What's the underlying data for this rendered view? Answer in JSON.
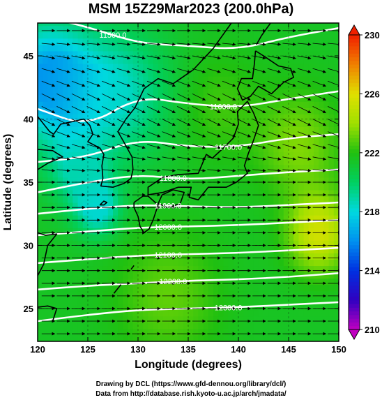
{
  "title": "MSM 15Z29Mar2023 (200.0hPa)",
  "credit_line1": "Drawing by DCL (https://www.gfd-dennou.org/library/dcl/)",
  "credit_line2": "Data from http://database.rish.kyoto-u.ac.jp/arch/jmadata/",
  "colors": {
    "contour": "#ffffff",
    "coast": "#000000",
    "vector": "#000000",
    "frame": "#000000"
  },
  "chart_data": {
    "type": "heatmap",
    "title": "MSM 15Z29Mar2023 (200.0hPa)",
    "xlabel": "Longitude (degrees)",
    "ylabel": "Latitude  (degrees)",
    "xlim": [
      120,
      150
    ],
    "ylim": [
      22.4,
      47.6
    ],
    "xticks": [
      120,
      125,
      130,
      135,
      140,
      145,
      150
    ],
    "yticks": [
      25,
      30,
      35,
      40,
      45
    ],
    "colorbar": {
      "min": 210,
      "max": 230,
      "ticks": [
        210,
        214,
        218,
        222,
        226,
        230
      ],
      "stops": [
        {
          "value": 210,
          "color": "#c000c0"
        },
        {
          "value": 212,
          "color": "#3000c0"
        },
        {
          "value": 214,
          "color": "#0030e0"
        },
        {
          "value": 216,
          "color": "#0090f0"
        },
        {
          "value": 218,
          "color": "#00d8e0"
        },
        {
          "value": 220,
          "color": "#00d060"
        },
        {
          "value": 222,
          "color": "#20c010"
        },
        {
          "value": 224,
          "color": "#a0e000"
        },
        {
          "value": 226,
          "color": "#e0e000"
        },
        {
          "value": 228,
          "color": "#f08000"
        },
        {
          "value": 230,
          "color": "#f02000"
        }
      ]
    },
    "temperature_field": {
      "base": 221.5,
      "features": [
        {
          "lon": 121,
          "lat": 43,
          "value": 216.0,
          "radius": 4.5
        },
        {
          "lon": 128,
          "lat": 42,
          "value": 218.5,
          "radius": 5
        },
        {
          "lon": 124,
          "lat": 36,
          "value": 219.0,
          "radius": 3
        },
        {
          "lon": 126,
          "lat": 33,
          "value": 218.0,
          "radius": 2.2
        },
        {
          "lon": 148,
          "lat": 31,
          "value": 225.5,
          "radius": 3
        },
        {
          "lon": 146,
          "lat": 38,
          "value": 223.5,
          "radius": 4
        },
        {
          "lon": 138,
          "lat": 41,
          "value": 222.5,
          "radius": 4
        },
        {
          "lon": 133,
          "lat": 26,
          "value": 223.0,
          "radius": 5
        }
      ]
    },
    "contours": [
      {
        "label": "11500.0",
        "label_lon": 127.5,
        "points": [
          [
            120,
            48.2
          ],
          [
            125,
            47.3
          ],
          [
            130,
            46.0
          ],
          [
            135,
            45.8
          ],
          [
            140,
            45.5
          ],
          [
            145,
            46.5
          ],
          [
            150,
            47.2
          ]
        ]
      },
      {
        "label": "11600.0",
        "label_lon": 138.5,
        "points": [
          [
            120,
            40.8
          ],
          [
            125,
            39.4
          ],
          [
            130,
            41.8
          ],
          [
            135,
            41.2
          ],
          [
            140,
            40.9
          ],
          [
            145,
            41.6
          ],
          [
            150,
            42.2
          ]
        ]
      },
      {
        "label": "11700.0",
        "label_lon": 139.0,
        "points": [
          [
            120,
            36.6
          ],
          [
            125,
            37.0
          ],
          [
            130,
            38.4
          ],
          [
            135,
            37.8
          ],
          [
            140,
            37.8
          ],
          [
            145,
            38.5
          ],
          [
            150,
            38.8
          ]
        ]
      },
      {
        "label": "11800.0",
        "label_lon": 133.5,
        "points": [
          [
            120,
            34.2
          ],
          [
            125,
            35.0
          ],
          [
            130,
            35.6
          ],
          [
            135,
            35.2
          ],
          [
            140,
            35.5
          ],
          [
            145,
            35.8
          ],
          [
            150,
            36.0
          ]
        ]
      },
      {
        "label": "11900.0",
        "label_lon": 133.0,
        "points": [
          [
            120,
            32.5
          ],
          [
            125,
            32.9
          ],
          [
            130,
            33.2
          ],
          [
            135,
            33.1
          ],
          [
            140,
            33.0
          ],
          [
            145,
            33.2
          ],
          [
            150,
            33.4
          ]
        ]
      },
      {
        "label": "12000.0",
        "label_lon": 133.0,
        "points": [
          [
            120,
            30.8
          ],
          [
            125,
            31.1
          ],
          [
            130,
            31.4
          ],
          [
            135,
            31.5
          ],
          [
            140,
            31.6
          ],
          [
            145,
            31.8
          ],
          [
            150,
            32.0
          ]
        ]
      },
      {
        "label": "12100.0",
        "label_lon": 133.0,
        "points": [
          [
            120,
            28.6
          ],
          [
            125,
            28.9
          ],
          [
            130,
            29.2
          ],
          [
            135,
            29.3
          ],
          [
            140,
            29.4
          ],
          [
            145,
            29.6
          ],
          [
            150,
            29.8
          ]
        ]
      },
      {
        "label": "12200.0",
        "label_lon": 133.5,
        "points": [
          [
            120,
            26.5
          ],
          [
            125,
            26.8
          ],
          [
            130,
            27.0
          ],
          [
            135,
            27.2
          ],
          [
            140,
            27.3
          ],
          [
            145,
            27.5
          ],
          [
            150,
            27.8
          ]
        ]
      },
      {
        "label": "12300.0",
        "label_lon": 139.0,
        "points": [
          [
            120,
            24.0
          ],
          [
            125,
            24.5
          ],
          [
            130,
            24.9
          ],
          [
            135,
            25.0
          ],
          [
            140,
            25.1
          ],
          [
            145,
            25.3
          ],
          [
            150,
            25.5
          ]
        ]
      }
    ],
    "wind_rows": [
      {
        "lat": 47.0,
        "dlat": 0.0
      },
      {
        "lat": 46.0,
        "dlat": -0.1
      },
      {
        "lat": 45.0,
        "dlat": -0.2
      },
      {
        "lat": 44.0,
        "dlat": -0.3
      },
      {
        "lat": 43.0,
        "dlat": -0.4
      },
      {
        "lat": 42.0,
        "dlat": -0.5
      },
      {
        "lat": 41.0,
        "dlat": -0.5
      },
      {
        "lat": 40.0,
        "dlat": -0.5
      },
      {
        "lat": 39.0,
        "dlat": -0.4
      },
      {
        "lat": 38.0,
        "dlat": -0.3
      },
      {
        "lat": 37.0,
        "dlat": -0.2
      },
      {
        "lat": 36.0,
        "dlat": -0.1
      },
      {
        "lat": 35.0,
        "dlat": 0.0
      },
      {
        "lat": 34.0,
        "dlat": 0.0
      },
      {
        "lat": 33.0,
        "dlat": 0.0
      },
      {
        "lat": 32.0,
        "dlat": 0.0
      },
      {
        "lat": 31.0,
        "dlat": 0.0
      },
      {
        "lat": 30.0,
        "dlat": 0.0
      },
      {
        "lat": 29.0,
        "dlat": 0.0
      },
      {
        "lat": 28.0,
        "dlat": 0.0
      },
      {
        "lat": 27.0,
        "dlat": 0.0
      },
      {
        "lat": 26.0,
        "dlat": 0.0
      },
      {
        "lat": 25.0,
        "dlat": 0.0
      },
      {
        "lat": 24.0,
        "dlat": 0.0
      },
      {
        "lat": 23.0,
        "dlat": 0.0
      }
    ],
    "wind_lon_step": 1.5,
    "coastlines": [
      {
        "name": "korea",
        "points": [
          [
            124.6,
            40.0
          ],
          [
            125.2,
            39.5
          ],
          [
            125.5,
            38.8
          ],
          [
            125.0,
            38.2
          ],
          [
            126.2,
            37.7
          ],
          [
            126.6,
            37.2
          ],
          [
            126.4,
            36.3
          ],
          [
            126.5,
            35.3
          ],
          [
            126.3,
            34.7
          ],
          [
            127.5,
            34.6
          ],
          [
            128.6,
            34.9
          ],
          [
            129.3,
            35.3
          ],
          [
            129.5,
            36.0
          ],
          [
            129.4,
            37.0
          ],
          [
            128.5,
            38.3
          ],
          [
            128.0,
            39.0
          ],
          [
            128.8,
            40.0
          ],
          [
            129.7,
            40.9
          ],
          [
            130.6,
            42.4
          ]
        ]
      },
      {
        "name": "china-east",
        "points": [
          [
            120.0,
            40.2
          ],
          [
            121.2,
            39.0
          ],
          [
            121.6,
            38.8
          ],
          [
            122.3,
            39.6
          ],
          [
            123.5,
            39.8
          ],
          [
            124.6,
            40.0
          ]
        ]
      },
      {
        "name": "shandong",
        "points": [
          [
            120.0,
            37.6
          ],
          [
            121.5,
            37.5
          ],
          [
            122.5,
            37.0
          ],
          [
            121.0,
            36.5
          ],
          [
            120.0,
            36.0
          ]
        ]
      },
      {
        "name": "china-south",
        "points": [
          [
            120.0,
            31.0
          ],
          [
            120.8,
            30.8
          ],
          [
            121.9,
            30.9
          ],
          [
            121.0,
            30.0
          ],
          [
            120.6,
            28.5
          ],
          [
            120.0,
            27.6
          ]
        ]
      },
      {
        "name": "taiwan-north",
        "points": [
          [
            120.0,
            25.1
          ],
          [
            121.0,
            25.2
          ],
          [
            121.9,
            25.0
          ],
          [
            121.5,
            24.0
          ]
        ]
      },
      {
        "name": "primorye",
        "points": [
          [
            130.6,
            42.4
          ],
          [
            132.0,
            43.2
          ],
          [
            133.5,
            42.8
          ],
          [
            135.5,
            43.9
          ],
          [
            137.5,
            45.6
          ],
          [
            139.3,
            47.6
          ]
        ]
      },
      {
        "name": "sakhalin",
        "points": [
          [
            141.8,
            45.9
          ],
          [
            142.3,
            46.6
          ],
          [
            143.2,
            47.6
          ]
        ]
      },
      {
        "name": "hokkaido",
        "points": [
          [
            141.7,
            45.4
          ],
          [
            141.6,
            44.4
          ],
          [
            141.4,
            43.2
          ],
          [
            140.3,
            43.2
          ],
          [
            139.9,
            42.4
          ],
          [
            140.4,
            41.5
          ],
          [
            141.2,
            41.8
          ],
          [
            142.0,
            42.6
          ],
          [
            143.3,
            42.0
          ],
          [
            144.5,
            42.9
          ],
          [
            145.5,
            43.3
          ],
          [
            145.2,
            44.0
          ],
          [
            144.0,
            44.2
          ],
          [
            142.5,
            45.0
          ],
          [
            141.7,
            45.4
          ]
        ]
      },
      {
        "name": "honshu",
        "points": [
          [
            140.9,
            41.4
          ],
          [
            141.5,
            40.5
          ],
          [
            142.0,
            39.5
          ],
          [
            141.5,
            38.3
          ],
          [
            141.0,
            37.3
          ],
          [
            140.6,
            36.3
          ],
          [
            140.9,
            35.7
          ],
          [
            139.8,
            35.0
          ],
          [
            138.8,
            34.6
          ],
          [
            137.0,
            34.6
          ],
          [
            136.0,
            33.6
          ],
          [
            135.1,
            33.8
          ],
          [
            135.3,
            34.6
          ],
          [
            134.0,
            34.6
          ],
          [
            132.5,
            34.2
          ],
          [
            131.0,
            34.0
          ],
          [
            131.0,
            34.6
          ],
          [
            132.5,
            35.4
          ],
          [
            134.0,
            35.6
          ],
          [
            136.0,
            35.7
          ],
          [
            136.8,
            37.2
          ],
          [
            137.4,
            36.9
          ],
          [
            138.5,
            37.7
          ],
          [
            139.5,
            38.5
          ],
          [
            140.0,
            39.6
          ],
          [
            139.9,
            40.6
          ],
          [
            140.9,
            41.4
          ]
        ]
      },
      {
        "name": "shikoku",
        "points": [
          [
            132.0,
            33.3
          ],
          [
            133.0,
            33.0
          ],
          [
            134.2,
            33.3
          ],
          [
            134.6,
            34.2
          ],
          [
            133.5,
            34.4
          ],
          [
            132.4,
            34.0
          ],
          [
            132.0,
            33.3
          ]
        ]
      },
      {
        "name": "kyushu",
        "points": [
          [
            129.6,
            33.4
          ],
          [
            130.5,
            33.9
          ],
          [
            131.0,
            33.9
          ],
          [
            132.0,
            33.2
          ],
          [
            131.5,
            32.0
          ],
          [
            131.1,
            31.3
          ],
          [
            130.6,
            31.0
          ],
          [
            130.2,
            31.5
          ],
          [
            130.0,
            32.3
          ],
          [
            129.6,
            33.0
          ],
          [
            129.6,
            33.4
          ]
        ]
      },
      {
        "name": "jeju",
        "points": [
          [
            126.2,
            33.2
          ],
          [
            126.6,
            33.5
          ],
          [
            126.9,
            33.4
          ],
          [
            126.6,
            33.2
          ],
          [
            126.2,
            33.2
          ]
        ]
      },
      {
        "name": "ryukyu",
        "points": [
          [
            127.6,
            26.2
          ],
          [
            128.1,
            26.7
          ],
          [
            128.3,
            26.9
          ]
        ]
      },
      {
        "name": "amami",
        "points": [
          [
            129.3,
            28.1
          ],
          [
            129.6,
            28.4
          ]
        ]
      }
    ]
  }
}
